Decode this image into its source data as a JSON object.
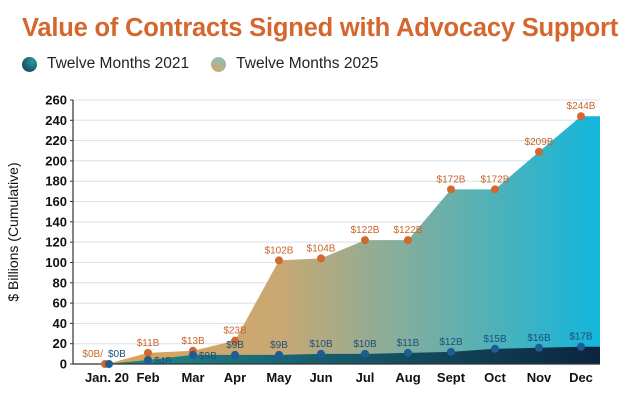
{
  "chart_data": {
    "type": "area",
    "title": "Value of Contracts Signed with Advocacy Support",
    "ylabel": "$ Billions (Cumulative)",
    "xlabel": "",
    "categories": [
      "Jan. 20",
      "Feb",
      "Mar",
      "Apr",
      "May",
      "Jun",
      "Jul",
      "Aug",
      "Sept",
      "Oct",
      "Nov",
      "Dec"
    ],
    "ylim": [
      0,
      260
    ],
    "yticks": [
      0,
      20,
      40,
      60,
      80,
      100,
      120,
      140,
      160,
      180,
      200,
      220,
      240,
      260
    ],
    "grid": true,
    "legend_position": "top-left",
    "series": [
      {
        "name": "Twelve Months 2021",
        "values": [
          0,
          4,
          9,
          9,
          9,
          10,
          10,
          11,
          12,
          15,
          16,
          17
        ],
        "labels": [
          "$0B",
          "$4B",
          "$9B",
          "$9B",
          "$9B",
          "$10B",
          "$10B",
          "$11B",
          "$12B",
          "$15B",
          "$16B",
          "$17B"
        ],
        "colors": {
          "start": "#1f8a8f",
          "end": "#0b2440",
          "point": "#1d5d94",
          "label": "#1d4f7a"
        }
      },
      {
        "name": "Twelve Months 2025",
        "values": [
          0,
          11,
          13,
          23,
          102,
          104,
          122,
          122,
          172,
          172,
          209,
          244
        ],
        "labels": [
          "$0B/",
          "$11B",
          "$13B",
          "$23B",
          "$102B",
          "$104B",
          "$122B",
          "$122B",
          "$172B",
          "$172B",
          "$209B",
          "$244B"
        ],
        "colors": {
          "start": "#dba358",
          "end": "#12b6dc",
          "point": "#d4672e",
          "label": "#c9642c"
        }
      }
    ]
  }
}
